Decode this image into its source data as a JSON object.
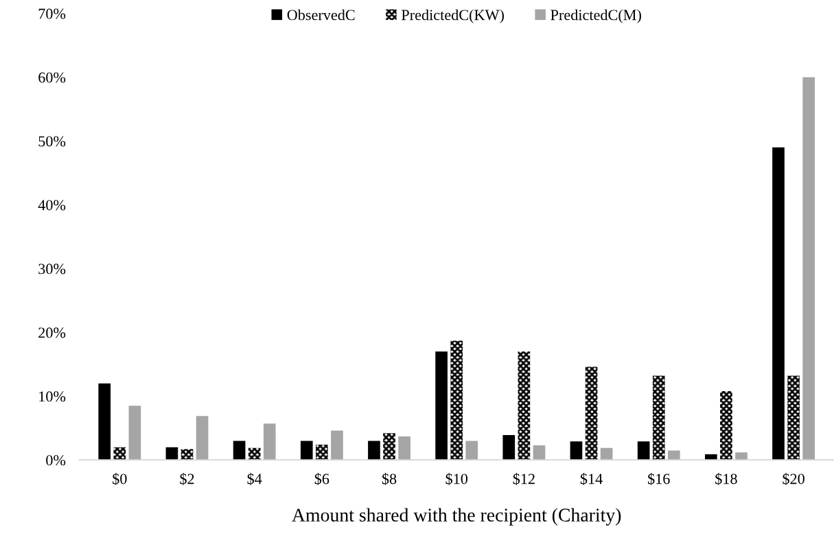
{
  "chart_data": {
    "type": "bar",
    "xlabel": "Amount shared with the recipient (Charity)",
    "categories": [
      "$0",
      "$2",
      "$4",
      "$6",
      "$8",
      "$10",
      "$12",
      "$14",
      "$16",
      "$18",
      "$20"
    ],
    "series": [
      {
        "name": "ObservedC",
        "color": "#000000",
        "values": [
          12.0,
          2.0,
          3.0,
          3.0,
          3.0,
          17.0,
          3.9,
          2.9,
          2.9,
          0.9,
          49.0
        ]
      },
      {
        "name": "PredictedC(KW)",
        "color": "#000000",
        "values": [
          2.0,
          1.7,
          1.9,
          2.4,
          4.2,
          18.7,
          17.0,
          14.6,
          13.2,
          10.8,
          13.2
        ]
      },
      {
        "name": "PredictedC(M)",
        "color": "#a5a5a5",
        "values": [
          8.5,
          6.9,
          5.7,
          4.6,
          3.7,
          3.0,
          2.3,
          1.9,
          1.5,
          1.2,
          60.0
        ]
      }
    ],
    "ylim": [
      0,
      70
    ],
    "yticks": [
      {
        "value": 0,
        "label": "0%"
      },
      {
        "value": 10,
        "label": "10%"
      },
      {
        "value": 20,
        "label": "20%"
      },
      {
        "value": 30,
        "label": "30%"
      },
      {
        "value": 40,
        "label": "40%"
      },
      {
        "value": 50,
        "label": "50%"
      },
      {
        "value": 60,
        "label": "60%"
      },
      {
        "value": 70,
        "label": "70%"
      }
    ],
    "grid": false,
    "legend": "top"
  }
}
